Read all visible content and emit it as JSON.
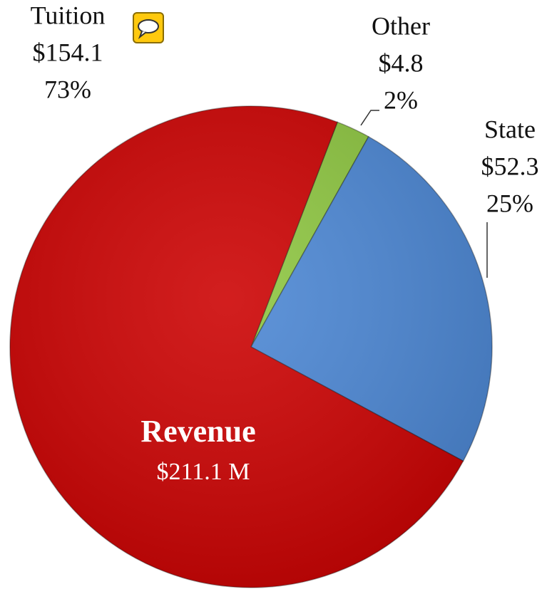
{
  "chart_data": {
    "type": "pie",
    "categories": [
      "Other",
      "State",
      "Tuition"
    ],
    "values": [
      4.8,
      52.3,
      154.1
    ],
    "value_labels": [
      "$4.8",
      "$52.3",
      "$154.1"
    ],
    "percentages": [
      2,
      25,
      73
    ],
    "percentage_labels": [
      "2%",
      "25%",
      "73%"
    ],
    "colors": [
      "#8dc63f",
      "#4a86d4",
      "#cc0000"
    ],
    "center_title": "Revenue",
    "center_subtitle": "$211.1 M"
  }
}
